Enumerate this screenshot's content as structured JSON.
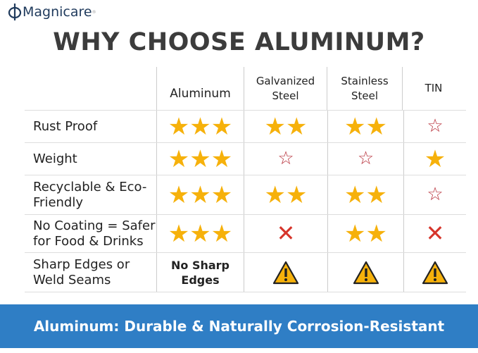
{
  "brand": "Magnicare",
  "title": "WHY CHOOSE ALUMINUM?",
  "columns": [
    "Aluminum",
    "Galvanized Steel",
    "Stainless Steel",
    "TIN"
  ],
  "rows": [
    {
      "label": "Rust Proof",
      "cells": [
        {
          "type": "stars",
          "count": 3
        },
        {
          "type": "stars",
          "count": 2
        },
        {
          "type": "stars",
          "count": 2
        },
        {
          "type": "outline-star"
        }
      ]
    },
    {
      "label": "Weight",
      "cells": [
        {
          "type": "stars",
          "count": 3
        },
        {
          "type": "outline-star"
        },
        {
          "type": "outline-star"
        },
        {
          "type": "stars",
          "count": 1
        }
      ]
    },
    {
      "label": "Recyclable & Eco-Friendly",
      "cells": [
        {
          "type": "stars",
          "count": 3
        },
        {
          "type": "stars",
          "count": 2
        },
        {
          "type": "stars",
          "count": 2
        },
        {
          "type": "outline-star"
        }
      ]
    },
    {
      "label": "No Coating = Safer for Food & Drinks",
      "cells": [
        {
          "type": "stars",
          "count": 3
        },
        {
          "type": "x"
        },
        {
          "type": "stars",
          "count": 2
        },
        {
          "type": "x"
        }
      ]
    },
    {
      "label": "Sharp Edges or Weld Seams",
      "cells": [
        {
          "type": "text",
          "text": "No Sharp Edges"
        },
        {
          "type": "warning"
        },
        {
          "type": "warning"
        },
        {
          "type": "warning"
        }
      ]
    }
  ],
  "banner": "Aluminum: Durable & Naturally Corrosion-Resistant",
  "colors": {
    "star": "#f6b10b",
    "outline_star": "#b8323c",
    "x": "#d6352b",
    "banner": "#2f7ec5"
  }
}
